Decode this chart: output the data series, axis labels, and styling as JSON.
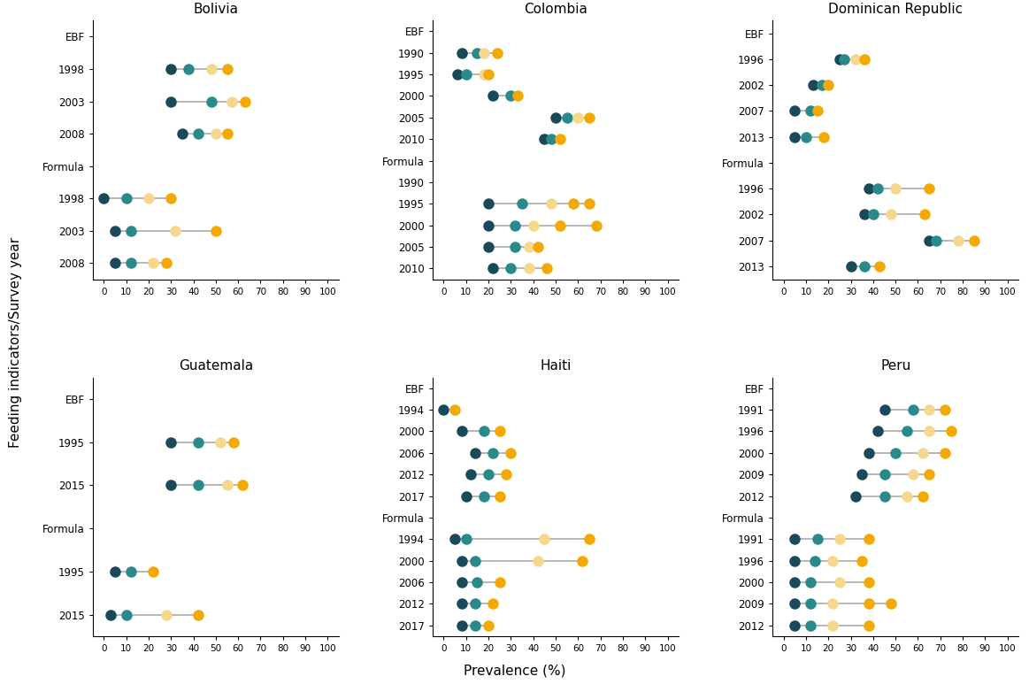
{
  "dot_colors": [
    "#1a4a5a",
    "#2a8a8a",
    "#f5d78e",
    "#f5a800"
  ],
  "markersize": 9,
  "linecolor": "#aaaaaa",
  "linewidth": 1.2,
  "panels": [
    {
      "title": "Bolivia",
      "rows": [
        {
          "label": "EBF",
          "dots": null
        },
        {
          "label": "1998",
          "dots": [
            30,
            38,
            48,
            55
          ]
        },
        {
          "label": "2003",
          "dots": [
            30,
            48,
            57,
            63
          ]
        },
        {
          "label": "2008",
          "dots": [
            35,
            42,
            50,
            55
          ]
        },
        {
          "label": "Formula",
          "dots": null
        },
        {
          "label": "1998",
          "dots": [
            0,
            10,
            20,
            30
          ]
        },
        {
          "label": "2003",
          "dots": [
            5,
            12,
            32,
            50
          ]
        },
        {
          "label": "2008",
          "dots": [
            5,
            12,
            22,
            28
          ]
        }
      ]
    },
    {
      "title": "Colombia",
      "rows": [
        {
          "label": "EBF",
          "dots": null
        },
        {
          "label": "1990",
          "dots": [
            8,
            15,
            18,
            24
          ]
        },
        {
          "label": "1995",
          "dots": [
            6,
            10,
            18,
            20
          ]
        },
        {
          "label": "2000",
          "dots": [
            22,
            30,
            33
          ]
        },
        {
          "label": "2005",
          "dots": [
            50,
            55,
            60,
            65
          ]
        },
        {
          "label": "2010",
          "dots": [
            45,
            48,
            52
          ]
        },
        {
          "label": "Formula",
          "dots": null
        },
        {
          "label": "1990",
          "dots": null
        },
        {
          "label": "1995",
          "dots": [
            20,
            35,
            48,
            58,
            65
          ]
        },
        {
          "label": "2000",
          "dots": [
            20,
            32,
            40,
            52,
            68
          ]
        },
        {
          "label": "2005",
          "dots": [
            20,
            32,
            38,
            42
          ]
        },
        {
          "label": "2010",
          "dots": [
            22,
            30,
            38,
            46
          ]
        }
      ]
    },
    {
      "title": "Dominican Republic",
      "rows": [
        {
          "label": "EBF",
          "dots": null
        },
        {
          "label": "1996",
          "dots": [
            25,
            27,
            32,
            36
          ]
        },
        {
          "label": "2002",
          "dots": [
            13,
            17,
            20
          ]
        },
        {
          "label": "2007",
          "dots": [
            5,
            12,
            15
          ]
        },
        {
          "label": "2013",
          "dots": [
            5,
            10,
            18
          ]
        },
        {
          "label": "Formula",
          "dots": null
        },
        {
          "label": "1996",
          "dots": [
            38,
            42,
            50,
            65
          ]
        },
        {
          "label": "2002",
          "dots": [
            36,
            40,
            48,
            63
          ]
        },
        {
          "label": "2007",
          "dots": [
            65,
            68,
            78,
            85
          ]
        },
        {
          "label": "2013",
          "dots": [
            30,
            36,
            43
          ]
        }
      ]
    },
    {
      "title": "Guatemala",
      "rows": [
        {
          "label": "EBF",
          "dots": null
        },
        {
          "label": "1995",
          "dots": [
            30,
            42,
            52,
            58
          ]
        },
        {
          "label": "2015",
          "dots": [
            30,
            42,
            55,
            62
          ]
        },
        {
          "label": "Formula",
          "dots": null
        },
        {
          "label": "1995",
          "dots": [
            5,
            12,
            22
          ]
        },
        {
          "label": "2015",
          "dots": [
            3,
            10,
            28,
            42
          ]
        }
      ]
    },
    {
      "title": "Haiti",
      "rows": [
        {
          "label": "EBF",
          "dots": null
        },
        {
          "label": "1994",
          "dots": [
            0,
            5
          ]
        },
        {
          "label": "2000",
          "dots": [
            8,
            18,
            25
          ]
        },
        {
          "label": "2006",
          "dots": [
            14,
            22,
            30
          ]
        },
        {
          "label": "2012",
          "dots": [
            12,
            20,
            28
          ]
        },
        {
          "label": "2017",
          "dots": [
            10,
            18,
            25
          ]
        },
        {
          "label": "Formula",
          "dots": null
        },
        {
          "label": "1994",
          "dots": [
            5,
            10,
            45,
            65
          ]
        },
        {
          "label": "2000",
          "dots": [
            8,
            14,
            42,
            62
          ]
        },
        {
          "label": "2006",
          "dots": [
            8,
            15,
            25
          ]
        },
        {
          "label": "2012",
          "dots": [
            8,
            14,
            22
          ]
        },
        {
          "label": "2017",
          "dots": [
            8,
            14,
            20
          ]
        }
      ]
    },
    {
      "title": "Peru",
      "rows": [
        {
          "label": "EBF",
          "dots": null
        },
        {
          "label": "1991",
          "dots": [
            45,
            58,
            65,
            72
          ]
        },
        {
          "label": "1996",
          "dots": [
            42,
            55,
            65,
            75
          ]
        },
        {
          "label": "2000",
          "dots": [
            38,
            50,
            62,
            72
          ]
        },
        {
          "label": "2009",
          "dots": [
            35,
            45,
            58,
            65
          ]
        },
        {
          "label": "2012",
          "dots": [
            32,
            45,
            55,
            62
          ]
        },
        {
          "label": "Formula",
          "dots": null
        },
        {
          "label": "1991",
          "dots": [
            5,
            15,
            25,
            38
          ]
        },
        {
          "label": "1996",
          "dots": [
            5,
            14,
            22,
            35
          ]
        },
        {
          "label": "2000",
          "dots": [
            5,
            12,
            25,
            38
          ]
        },
        {
          "label": "2009",
          "dots": [
            5,
            12,
            22,
            38,
            48
          ]
        },
        {
          "label": "2012",
          "dots": [
            5,
            12,
            22,
            38
          ]
        }
      ]
    }
  ],
  "xlim": [
    -5,
    105
  ],
  "xticks": [
    0,
    10,
    20,
    30,
    40,
    50,
    60,
    70,
    80,
    90,
    100
  ],
  "xlabel": "Prevalence (%)",
  "ylabel": "Feeding indicators/Survey year",
  "figsize": [
    11.63,
    7.73
  ],
  "dpi": 100
}
